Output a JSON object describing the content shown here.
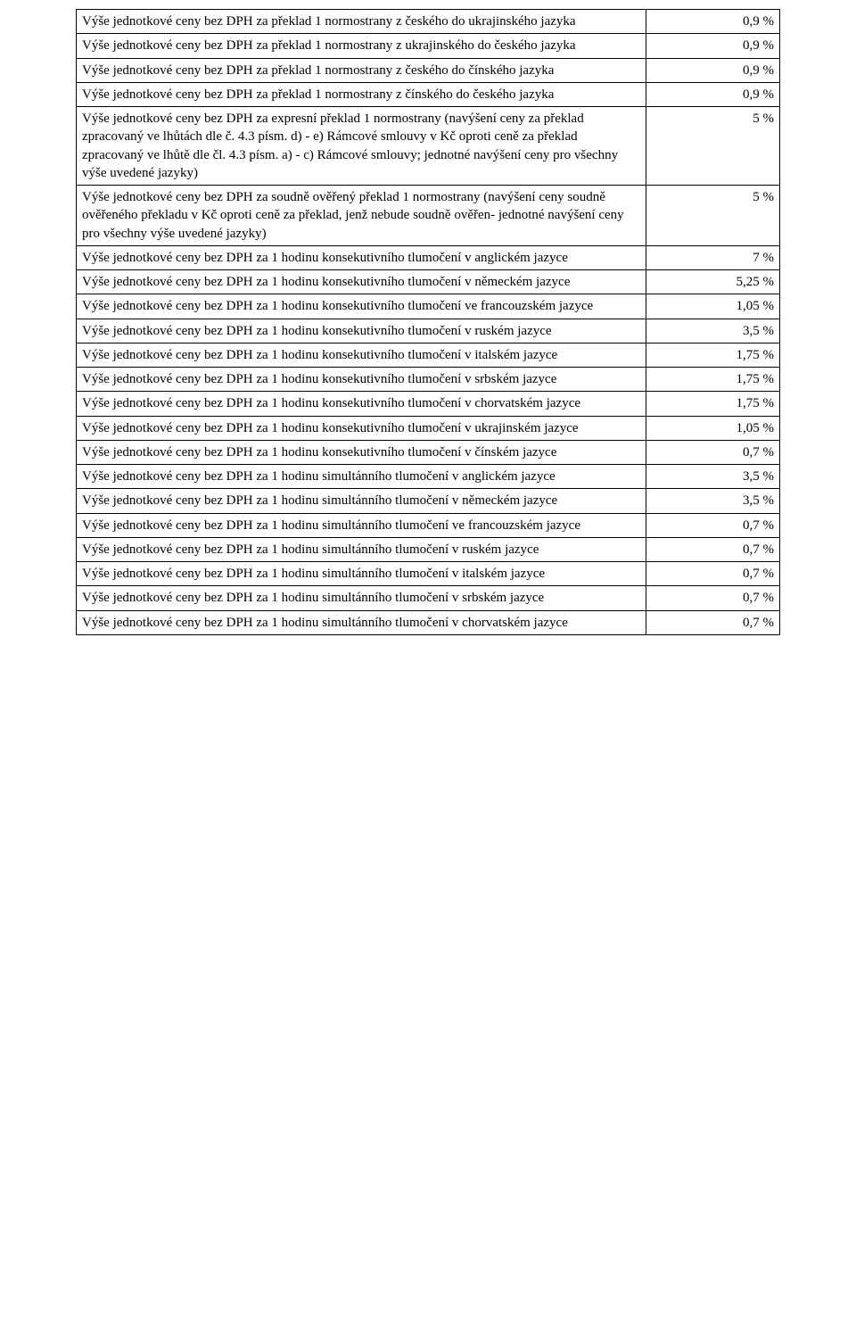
{
  "table": {
    "column_widths_pct": [
      82,
      18
    ],
    "border_color": "#000000",
    "text_color": "#000000",
    "background_color": "#ffffff",
    "font_family": "Times New Roman",
    "font_size_pt": 12,
    "rows": [
      {
        "desc": "Výše jednotkové ceny bez DPH za překlad 1 normostrany z českého do ukrajinského jazyka",
        "val": "0,9 %"
      },
      {
        "desc": "Výše jednotkové ceny bez DPH za překlad 1 normostrany z ukrajinského do českého jazyka",
        "val": "0,9 %"
      },
      {
        "desc": "Výše jednotkové ceny bez DPH za překlad 1 normostrany z českého do čínského jazyka",
        "val": "0,9 %"
      },
      {
        "desc": "Výše jednotkové ceny bez DPH za překlad 1 normostrany z čínského do českého jazyka",
        "val": "0,9 %"
      },
      {
        "desc": "Výše jednotkové ceny bez DPH za expresní překlad 1 normostrany (navýšení ceny za překlad zpracovaný ve lhůtách dle č. 4.3 písm. d) - e) Rámcové smlouvy v Kč oproti ceně za překlad zpracovaný ve lhůtě dle čl. 4.3 písm. a) - c) Rámcové smlouvy; jednotné navýšení ceny pro všechny výše uvedené jazyky)",
        "val": "5 %"
      },
      {
        "desc": "Výše jednotkové ceny bez DPH za soudně ověřený překlad 1 normostrany (navýšení ceny soudně ověřeného překladu v Kč oproti ceně za překlad, jenž nebude soudně ověřen- jednotné navýšení ceny pro všechny výše uvedené jazyky)",
        "val": "5 %"
      },
      {
        "desc": "Výše jednotkové ceny bez DPH za 1 hodinu konsekutivního tlumočení v anglickém jazyce",
        "val": "7 %"
      },
      {
        "desc": "Výše jednotkové ceny bez DPH za 1 hodinu konsekutivního tlumočení v německém jazyce",
        "val": "5,25 %"
      },
      {
        "desc": "Výše jednotkové ceny bez DPH za 1 hodinu konsekutivního tlumočení ve francouzském jazyce",
        "val": "1,05 %"
      },
      {
        "desc": "Výše jednotkové ceny bez DPH za 1 hodinu konsekutivního tlumočení v ruském jazyce",
        "val": "3,5 %"
      },
      {
        "desc": "Výše jednotkové ceny bez DPH za 1 hodinu konsekutivního tlumočení v italském jazyce",
        "val": "1,75 %"
      },
      {
        "desc": "Výše jednotkové ceny bez DPH za 1 hodinu konsekutivního tlumočení v srbském jazyce",
        "val": "1,75 %"
      },
      {
        "desc": "Výše jednotkové ceny bez DPH za 1 hodinu konsekutivního tlumočení v chorvatském jazyce",
        "val": "1,75 %"
      },
      {
        "desc": "Výše jednotkové ceny bez DPH za 1 hodinu konsekutivního tlumočení v ukrajinském jazyce",
        "val": "1,05 %"
      },
      {
        "desc": "Výše jednotkové ceny bez DPH za 1 hodinu konsekutivního tlumočení v čínském jazyce",
        "val": "0,7 %"
      },
      {
        "desc": "Výše jednotkové ceny bez DPH za 1 hodinu simultánního tlumočení v anglickém jazyce",
        "val": "3,5 %"
      },
      {
        "desc": "Výše jednotkové ceny bez DPH za 1 hodinu simultánního tlumočení v německém jazyce",
        "val": "3,5 %"
      },
      {
        "desc": "Výše jednotkové ceny bez DPH za 1 hodinu simultánního tlumočení ve francouzském jazyce",
        "val": "0,7 %"
      },
      {
        "desc": "Výše jednotkové ceny bez DPH za 1 hodinu simultánního tlumočení v ruském jazyce",
        "val": "0,7 %"
      },
      {
        "desc": "Výše jednotkové ceny bez DPH za 1 hodinu simultánního tlumočení v italském jazyce",
        "val": "0,7 %"
      },
      {
        "desc": "Výše jednotkové ceny bez DPH za 1 hodinu simultánního tlumočení v srbském jazyce",
        "val": "0,7 %"
      },
      {
        "desc": "Výše jednotkové ceny bez DPH za 1 hodinu simultánního tlumočení v chorvatském jazyce",
        "val": "0,7 %"
      }
    ]
  }
}
